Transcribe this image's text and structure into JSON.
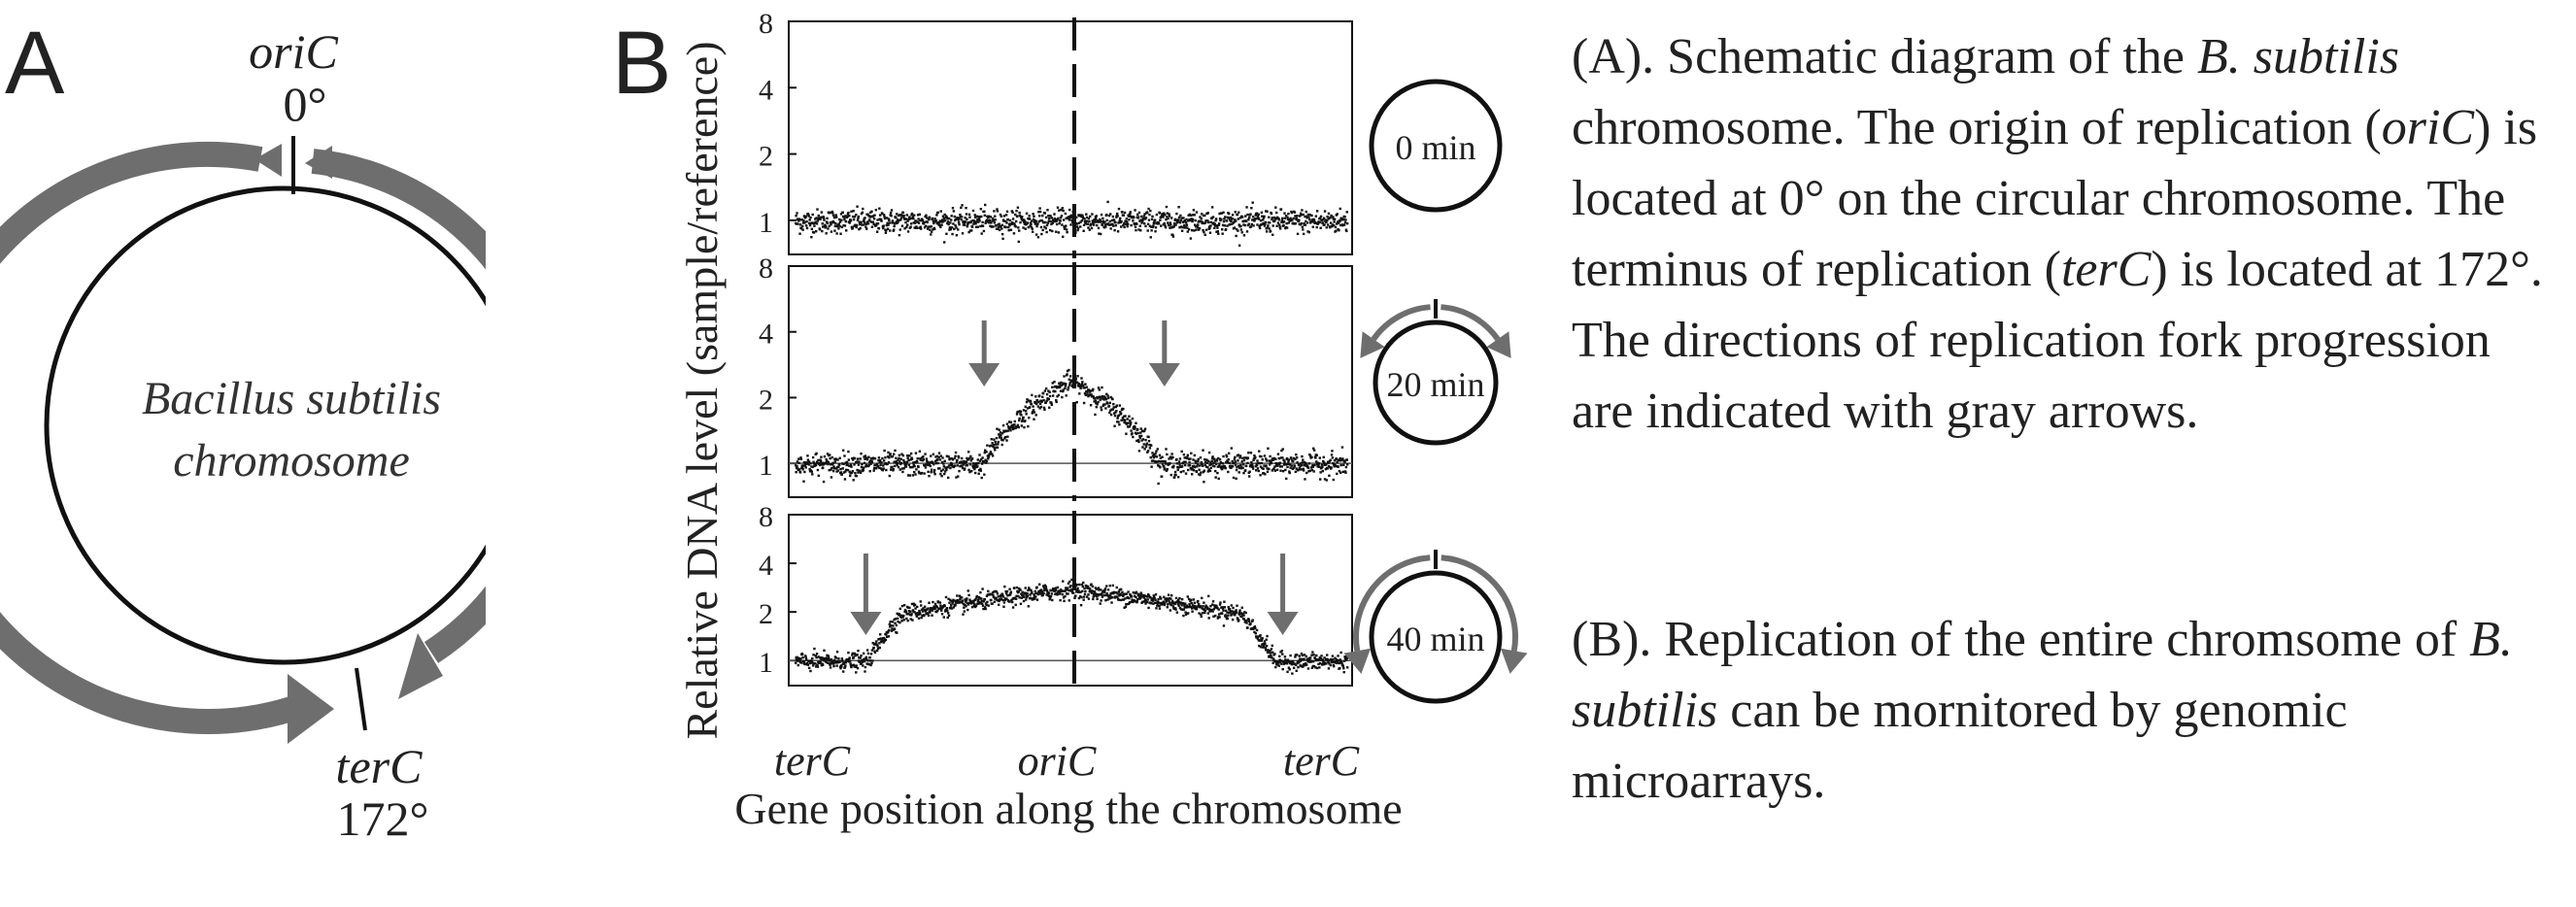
{
  "panel_a": {
    "letter": "A",
    "ori_label": "oriC",
    "ori_angle": "0°",
    "ter_label": "terC",
    "ter_angle": "172°",
    "center_line1": "Bacillus subtilis",
    "center_line2": "chromosome",
    "arrow_color": "#6e6e6e"
  },
  "panel_b": {
    "letter": "B",
    "ylabel": "Relative DNA level (sample/reference)",
    "xlabel": "Gene position along the chromosome",
    "xticks": [
      "terC",
      "oriC",
      "terC"
    ],
    "yticks": [
      "1",
      "2",
      "4",
      "8"
    ],
    "arrow_color": "#6e6e6e",
    "point_color": "#111111",
    "timepoints": [
      {
        "label": "0 min",
        "profile": "flat"
      },
      {
        "label": "20 min",
        "profile": "peak_narrow"
      },
      {
        "label": "40 min",
        "profile": "peak_wide"
      }
    ]
  },
  "chart_data": [
    {
      "type": "scatter",
      "title": "0 min",
      "xlabel": "Gene position along the chromosome",
      "ylabel": "Relative DNA level (sample/reference)",
      "x_categories": [
        "terC",
        "oriC",
        "terC"
      ],
      "yscale": "log2",
      "ylim": [
        0.7,
        8
      ],
      "yticks": [
        1,
        2,
        4,
        8
      ],
      "series": [
        {
          "x": [
            "terC",
            "oriC",
            "terC"
          ],
          "y": [
            1.0,
            1.0,
            1.0
          ]
        }
      ]
    },
    {
      "type": "scatter",
      "title": "20 min",
      "xlabel": "Gene position along the chromosome",
      "ylabel": "Relative DNA level (sample/reference)",
      "x_categories": [
        "terC",
        "oriC",
        "terC"
      ],
      "yscale": "log2",
      "ylim": [
        0.7,
        8
      ],
      "yticks": [
        1,
        2,
        4,
        8
      ],
      "series": [
        {
          "x": [
            "terC",
            "oriC",
            "terC"
          ],
          "y": [
            1.0,
            2.4,
            1.0
          ]
        }
      ]
    },
    {
      "type": "scatter",
      "title": "40 min",
      "xlabel": "Gene position along the chromosome",
      "ylabel": "Relative DNA level (sample/reference)",
      "x_categories": [
        "terC",
        "oriC",
        "terC"
      ],
      "yscale": "log2",
      "ylim": [
        0.7,
        8
      ],
      "yticks": [
        1,
        2,
        4,
        8
      ],
      "series": [
        {
          "x": [
            "terC",
            "oriC",
            "terC"
          ],
          "y": [
            1.0,
            2.8,
            1.0
          ]
        }
      ]
    }
  ],
  "caption_a": {
    "p1": "(A). Schematic diagram of the ",
    "p1_species": "B. subtilis",
    "p2": " chromosome.  The origin of replication (",
    "p2_ori": "oriC",
    "p3": ") is located at 0° on the circular chromosome.  The terminus of replication (",
    "p3_ter": "terC",
    "p4": ") is located at 172°.  The directions of replication fork progression are indicated with gray arrows."
  },
  "caption_b": {
    "p1": "(B). Replication of the entire chromsome of ",
    "p1_species": "B. subtilis",
    "p2": " can be mornitored by genomic microarrays."
  }
}
